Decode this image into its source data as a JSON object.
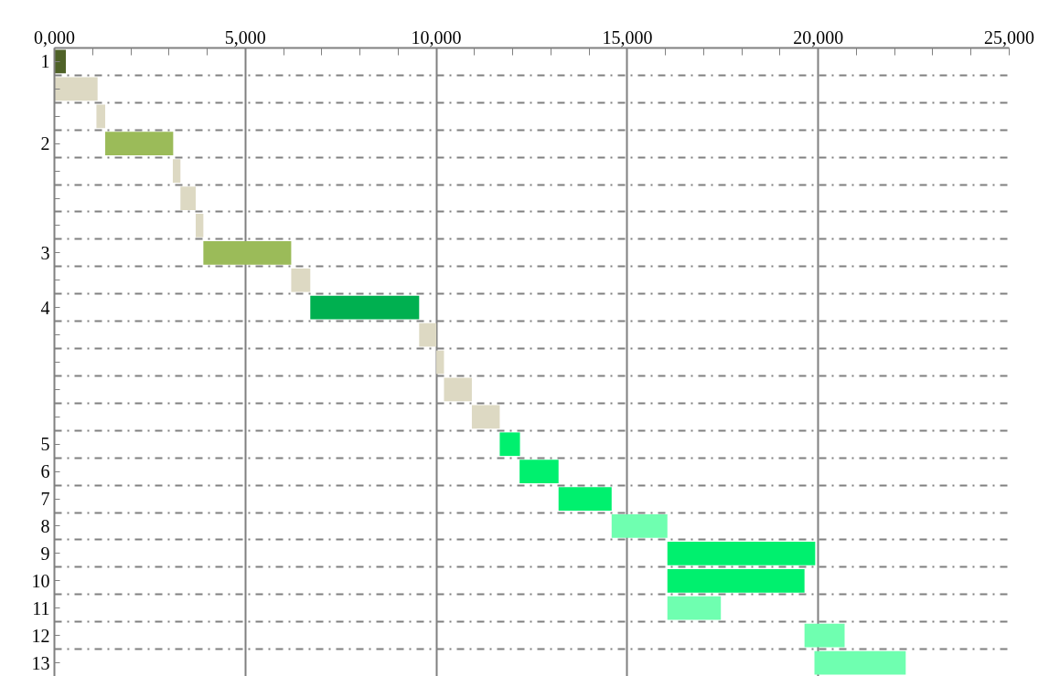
{
  "chart_data": {
    "type": "bar",
    "orientation": "horizontal",
    "grid": true,
    "categories": [
      "1",
      null,
      null,
      "2",
      null,
      null,
      null,
      "3",
      null,
      "4",
      null,
      null,
      null,
      null,
      "5",
      "6",
      "7",
      "8",
      "9",
      "10",
      "11",
      "12",
      "13"
    ],
    "base": [
      0,
      0,
      1100,
      1330,
      3100,
      3300,
      3700,
      3900,
      6200,
      6700,
      9550,
      10000,
      10200,
      10930,
      11660,
      12180,
      13200,
      14590,
      16050,
      16050,
      16050,
      19640,
      19900
    ],
    "values": [
      300,
      1130,
      230,
      1780,
      200,
      400,
      200,
      2300,
      500,
      2850,
      450,
      200,
      730,
      730,
      530,
      1020,
      1390,
      1460,
      3870,
      3590,
      1400,
      1050,
      2390
    ],
    "colors": [
      "#4f6228",
      "#ddd9c3",
      "#ddd9c3",
      "#9bbb59",
      "#ddd9c3",
      "#ddd9c3",
      "#ddd9c3",
      "#9bbb59",
      "#ddd9c3",
      "#00b050",
      "#ddd9c3",
      "#ddd9c3",
      "#ddd9c3",
      "#ddd9c3",
      "#00f06e",
      "#00f06e",
      "#00f06e",
      "#6fffb0",
      "#00f06e",
      "#00f06e",
      "#6fffb0",
      "#6fffb0",
      "#6fffb0"
    ],
    "xlim": [
      0,
      25000
    ],
    "xticks": [
      {
        "value": 0,
        "label": "0,000"
      },
      {
        "value": 1000,
        "label": null
      },
      {
        "value": 2000,
        "label": null
      },
      {
        "value": 3000,
        "label": null
      },
      {
        "value": 4000,
        "label": null
      },
      {
        "value": 5000,
        "label": "5,000"
      },
      {
        "value": 6000,
        "label": null
      },
      {
        "value": 7000,
        "label": null
      },
      {
        "value": 8000,
        "label": null
      },
      {
        "value": 9000,
        "label": null
      },
      {
        "value": 10000,
        "label": "10,000"
      },
      {
        "value": 11000,
        "label": null
      },
      {
        "value": 12000,
        "label": null
      },
      {
        "value": 13000,
        "label": null
      },
      {
        "value": 14000,
        "label": null
      },
      {
        "value": 15000,
        "label": "15,000"
      },
      {
        "value": 16000,
        "label": null
      },
      {
        "value": 17000,
        "label": null
      },
      {
        "value": 18000,
        "label": null
      },
      {
        "value": 19000,
        "label": null
      },
      {
        "value": 20000,
        "label": "20,000"
      },
      {
        "value": 21000,
        "label": null
      },
      {
        "value": 22000,
        "label": null
      },
      {
        "value": 23000,
        "label": null
      },
      {
        "value": 24000,
        "label": null
      },
      {
        "value": 25000,
        "label": "25,000"
      }
    ]
  }
}
